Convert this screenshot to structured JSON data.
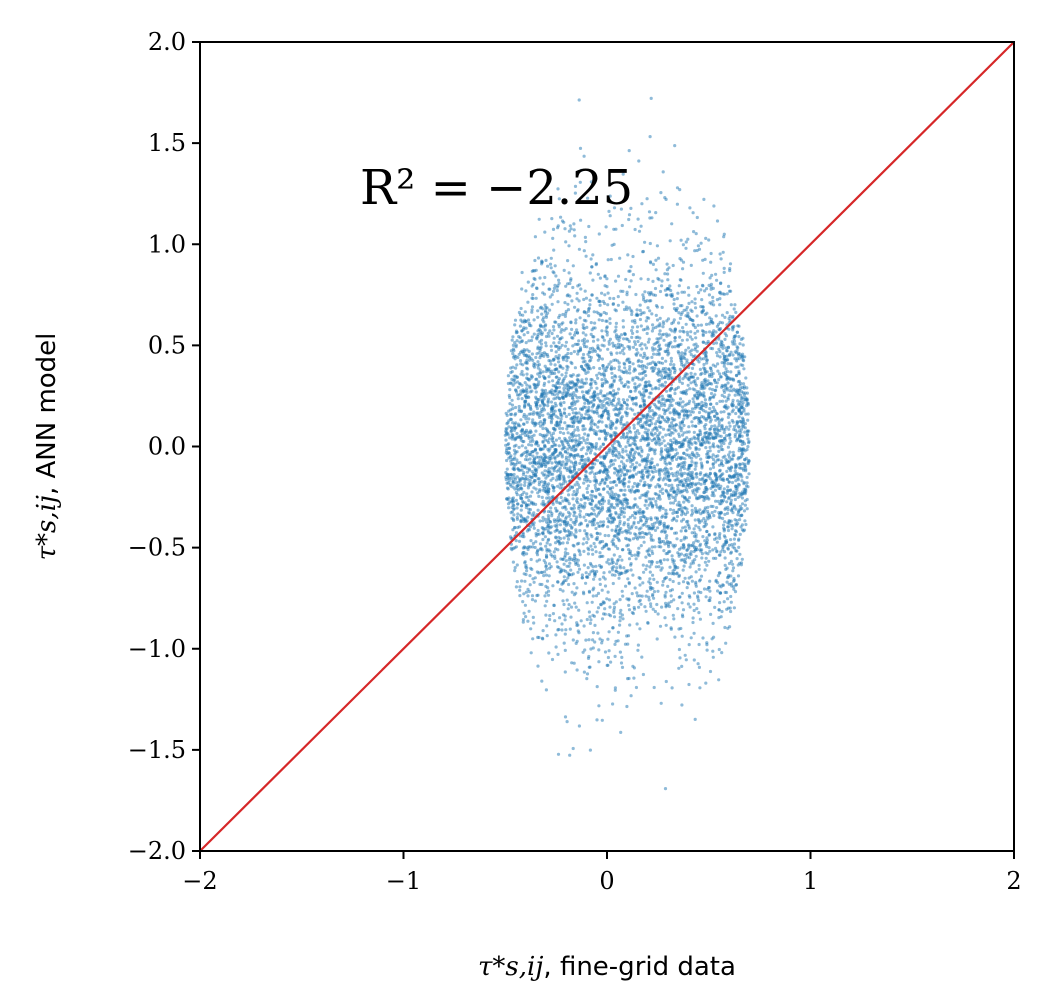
{
  "chart_data": {
    "type": "scatter",
    "xlabel_symbol": "τ*s,ij",
    "xlabel_text": ", fine-grid data",
    "ylabel_symbol": "τ*s,ij",
    "ylabel_text": ", ANN model",
    "annotation": "R² = −2.25",
    "xlim": [
      -2,
      2
    ],
    "ylim": [
      -2,
      2
    ],
    "x_ticks": [
      -2,
      -1,
      0,
      1,
      2
    ],
    "x_tick_labels": [
      "−2",
      "−1",
      "0",
      "1",
      "2"
    ],
    "y_ticks": [
      -2.0,
      -1.5,
      -1.0,
      -0.5,
      0.0,
      0.5,
      1.0,
      1.5,
      2.0
    ],
    "y_tick_labels": [
      "−2.0",
      "−1.5",
      "−1.0",
      "−0.5",
      "0.0",
      "0.5",
      "1.0",
      "1.5",
      "2.0"
    ],
    "grid": false,
    "series": [
      {
        "kind": "scatter",
        "color": "#1f77b4",
        "x_center": 0.1,
        "x_range": [
          -0.55,
          0.65
        ],
        "y_center": 0.0,
        "y_std": 0.45,
        "approx_point_count": 6000
      },
      {
        "kind": "reference_line",
        "color": "#d62728",
        "x": [
          -2,
          2
        ],
        "y": [
          -2,
          2
        ]
      }
    ]
  }
}
